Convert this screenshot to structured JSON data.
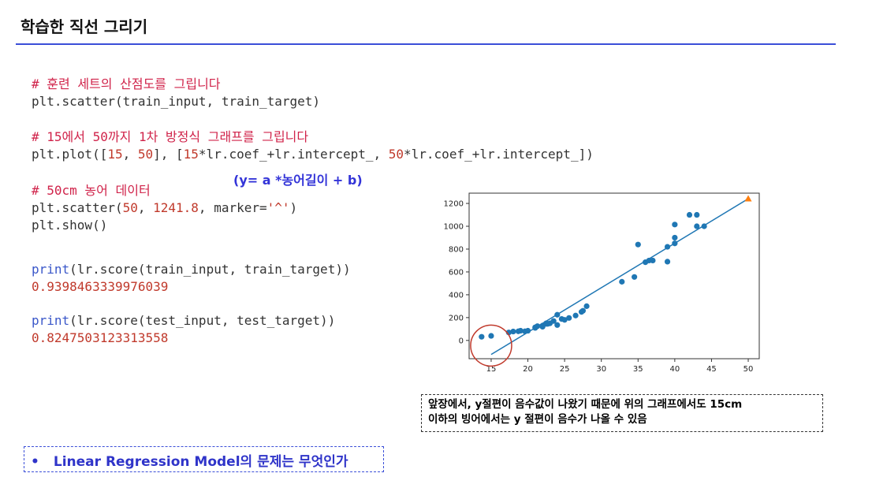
{
  "slide": {
    "title": "학습한 직선 그리기"
  },
  "code": {
    "comment1": "# 훈련 세트의 산점도를 그립니다",
    "line1": "plt.scatter(train_input, train_target)",
    "comment2": "# 15에서 50까지 1차 방정식 그래프를 그립니다",
    "line2_a": "plt.plot([",
    "line2_n1": "15",
    "line2_b": ", ",
    "line2_n2": "50",
    "line2_c": "], [",
    "line2_n3": "15",
    "line2_d": "*lr.coef_+lr.intercept_, ",
    "line2_n4": "50",
    "line2_e": "*lr.coef_+lr.intercept_])",
    "comment3": "# 50cm 농어 데이터",
    "line3_a": "plt.scatter(",
    "line3_n1": "50",
    "line3_b": ", ",
    "line3_n2": "1241.8",
    "line3_c": ", marker=",
    "line3_s": "'^'",
    "line3_d": ")",
    "line4": "plt.show()",
    "print_kw": "print",
    "print1_rest": "(lr.score(train_input, train_target))",
    "output1": "0.9398463339976039",
    "print2_rest": "(lr.score(test_input, test_target))",
    "output2": "0.8247503123313558"
  },
  "annotation": "(y= a *농어길이 + b)",
  "note": {
    "line1": "앞장에서, y절편이 음수값이 나왔기 때문에 위의 그래프에서도 15cm",
    "line2": "이하의 빙어에서는 y 절편이 음수가 나올 수 있음"
  },
  "question": {
    "bullet": "•",
    "text": "Linear Regression Model의 문제는 무엇인가"
  },
  "chart_data": {
    "type": "scatter",
    "xlim": [
      12,
      51.5
    ],
    "ylim": [
      -160,
      1290
    ],
    "xticks": [
      15,
      20,
      25,
      30,
      35,
      40,
      45,
      50
    ],
    "yticks": [
      0,
      200,
      400,
      600,
      800,
      1000,
      1200
    ],
    "points": [
      [
        13.7,
        32
      ],
      [
        15.0,
        40
      ],
      [
        17.4,
        70
      ],
      [
        18.0,
        78
      ],
      [
        18.7,
        80
      ],
      [
        19.0,
        85
      ],
      [
        19.6,
        80
      ],
      [
        20.0,
        85
      ],
      [
        21.0,
        110
      ],
      [
        21.0,
        115
      ],
      [
        21.3,
        125
      ],
      [
        22.0,
        130
      ],
      [
        22.0,
        120
      ],
      [
        22.5,
        145
      ],
      [
        22.5,
        150
      ],
      [
        22.7,
        145
      ],
      [
        23.0,
        150
      ],
      [
        23.5,
        170
      ],
      [
        24.0,
        135
      ],
      [
        24.0,
        225
      ],
      [
        24.6,
        188
      ],
      [
        25.0,
        180
      ],
      [
        25.6,
        197
      ],
      [
        26.5,
        218
      ],
      [
        27.3,
        250
      ],
      [
        27.5,
        260
      ],
      [
        28.0,
        300
      ],
      [
        32.8,
        514
      ],
      [
        34.5,
        556
      ],
      [
        35.0,
        840
      ],
      [
        36.0,
        685
      ],
      [
        36.5,
        700
      ],
      [
        37.0,
        700
      ],
      [
        39.0,
        690
      ],
      [
        39.0,
        820
      ],
      [
        40.0,
        850
      ],
      [
        40.0,
        900
      ],
      [
        40.0,
        1015
      ],
      [
        42.0,
        1100
      ],
      [
        43.0,
        1100
      ],
      [
        43.0,
        1000
      ],
      [
        44.0,
        1000
      ]
    ],
    "line": {
      "x": [
        15,
        50
      ],
      "y": [
        -123,
        1241
      ]
    },
    "marker_point": {
      "x": 50,
      "y": 1241.8,
      "marker": "^"
    },
    "colors": {
      "points": "#1f77b4",
      "line": "#1f77b4",
      "marker": "#ff7f0e",
      "highlight": "#c0392b"
    },
    "highlight_circle": {
      "x": 15,
      "y": -45
    }
  }
}
